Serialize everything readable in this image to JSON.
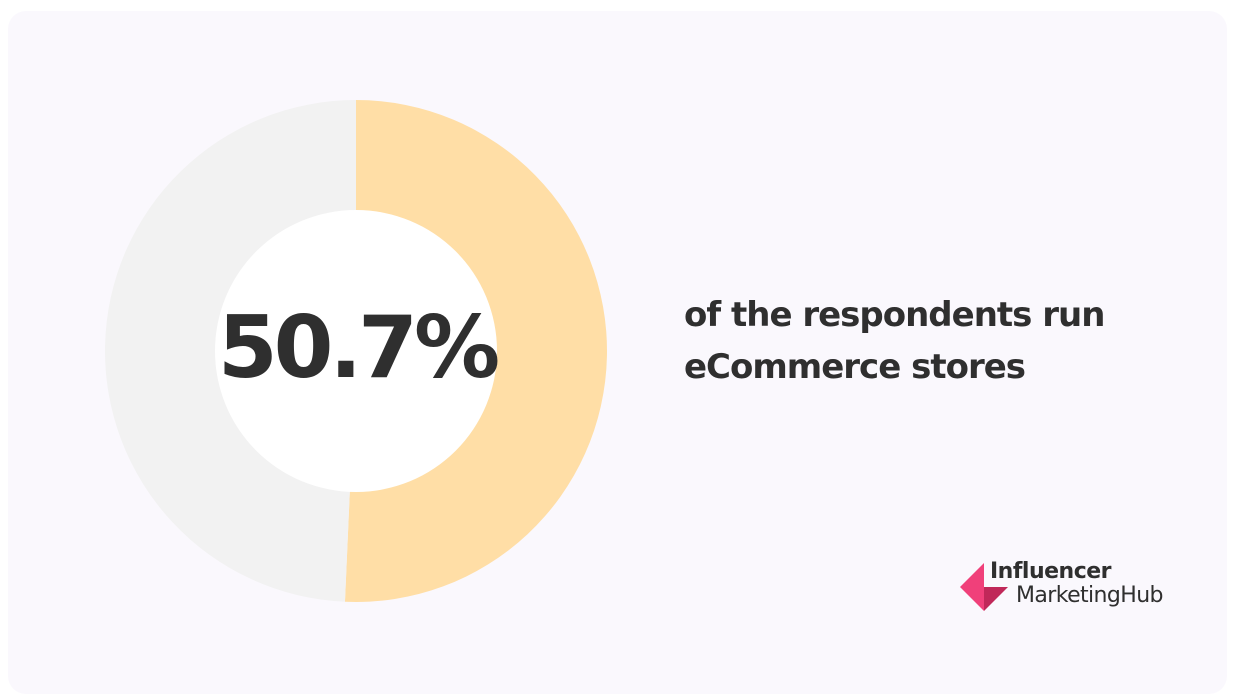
{
  "chart_data": {
    "type": "pie",
    "style": "donut",
    "value_label": "50.7%",
    "slices": [
      {
        "label": "",
        "value": 50.7,
        "color": "#ffdea6"
      },
      {
        "label": "",
        "value": 49.3,
        "color": "#f2f2f2"
      }
    ],
    "center_color": "#ffffff"
  },
  "caption": {
    "line1": "of the respondents run",
    "line2": "eCommerce stores"
  },
  "logo": {
    "line1": "Influencer",
    "line2": "MarketingHub",
    "mark_colors": [
      "#f0407a",
      "#c02859"
    ]
  }
}
